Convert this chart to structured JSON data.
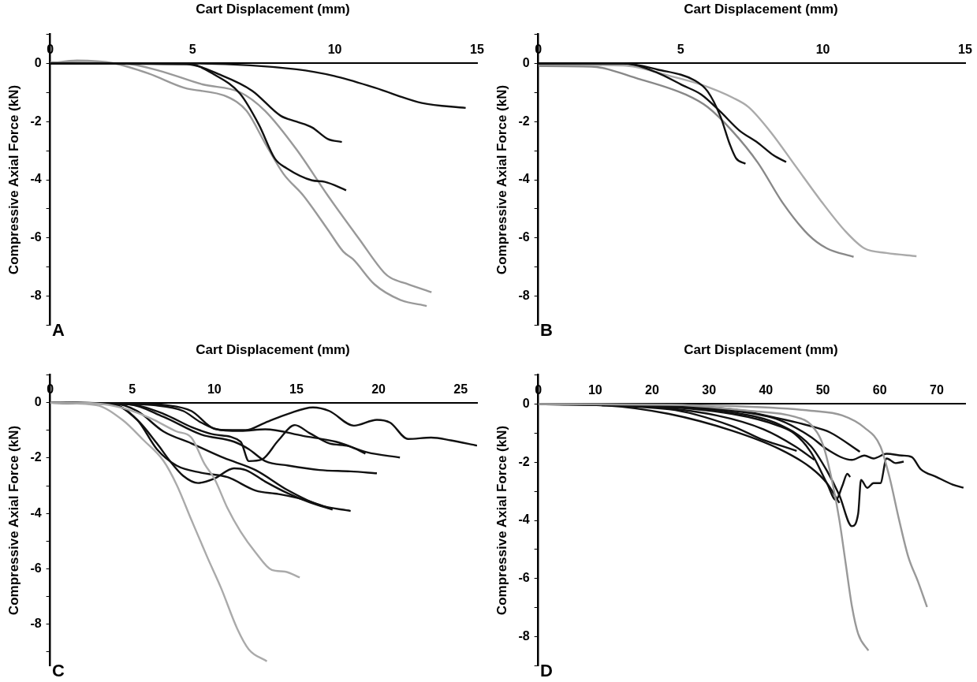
{
  "chart_data": [
    {
      "type": "line",
      "xlabel": "Cart Displacement (mm)",
      "ylabel": "Compressive Axial Force (kN)",
      "annotations": [
        "A"
      ],
      "marker": "none",
      "line_style": "solid",
      "xlim": [
        0,
        15
      ],
      "xticks": [
        0,
        5,
        10,
        15
      ],
      "ylim": [
        -9,
        1
      ],
      "yticks": [
        {
          "value": 1,
          "label": null
        },
        0,
        {
          "value": -1,
          "label": null
        },
        -2,
        {
          "value": -3,
          "label": null
        },
        -4,
        {
          "value": -5,
          "label": null
        },
        -6,
        {
          "value": -7,
          "label": null
        },
        -8,
        {
          "value": -9,
          "label": null
        }
      ],
      "series": [
        {
          "color": "#111111",
          "x": [
            0,
            4.8,
            8.65,
            9.98,
            11.4,
            13.06,
            14.6
          ],
          "values": [
            0,
            0,
            -0.2,
            -0.43,
            -0.83,
            -1.36,
            -1.53
          ]
        },
        {
          "color": "#111111",
          "x": [
            0,
            4.8,
            6.0,
            7.1,
            8.1,
            8.65,
            9.2,
            9.76,
            10.25
          ],
          "values": [
            0,
            -0.03,
            -0.4,
            -0.94,
            -1.8,
            -2.0,
            -2.2,
            -2.6,
            -2.7
          ]
        },
        {
          "color": "#111111",
          "x": [
            0,
            4.8,
            5.8,
            6.67,
            7.33,
            7.9,
            8.3,
            9.2,
            9.65,
            10.4
          ],
          "values": [
            0,
            0,
            -0.4,
            -1.04,
            -2.1,
            -3.28,
            -3.6,
            -4.02,
            -4.07,
            -4.36
          ]
        },
        {
          "color": "#999999",
          "x": [
            0,
            2.6,
            3.8,
            5.35,
            6.67,
            7.55,
            8.65,
            9.76,
            10.86,
            11.74,
            11.96,
            12.6,
            13.4
          ],
          "values": [
            0.04,
            0,
            -0.24,
            -0.72,
            -0.99,
            -1.63,
            -2.95,
            -4.55,
            -6.04,
            -7.2,
            -7.37,
            -7.6,
            -7.87
          ]
        },
        {
          "color": "#999999",
          "x": [
            0,
            0.94,
            2.26,
            3.47,
            4.69,
            6.23,
            6.9,
            7.55,
            8.2,
            8.9,
            9.76,
            10.3,
            10.64,
            11.4,
            12.3,
            13.23
          ],
          "values": [
            0,
            0.1,
            0,
            -0.35,
            -0.83,
            -1.15,
            -1.63,
            -2.74,
            -3.8,
            -4.55,
            -5.72,
            -6.47,
            -6.73,
            -7.6,
            -8.13,
            -8.34
          ]
        }
      ]
    },
    {
      "type": "line",
      "xlabel": "Cart Displacement (mm)",
      "ylabel": "Compressive Axial Force (kN)",
      "annotations": [
        "B"
      ],
      "marker": "none",
      "line_style": "solid",
      "xlim": [
        0,
        15
      ],
      "xticks": [
        0,
        5,
        10,
        15
      ],
      "ylim": [
        -9,
        1
      ],
      "yticks": [
        {
          "value": 1,
          "label": null
        },
        0,
        {
          "value": -1,
          "label": null
        },
        -2,
        {
          "value": -3,
          "label": null
        },
        -4,
        {
          "value": -5,
          "label": null
        },
        -6,
        {
          "value": -7,
          "label": null
        },
        -8,
        {
          "value": -9,
          "label": null
        }
      ],
      "series": [
        {
          "color": "#111111",
          "x": [
            0,
            2.98,
            4.19,
            5.51,
            5.95,
            6.4,
            6.73,
            6.95,
            7.28
          ],
          "values": [
            0,
            0,
            -0.21,
            -0.59,
            -0.96,
            -1.82,
            -2.78,
            -3.26,
            -3.45
          ]
        },
        {
          "color": "#111111",
          "x": [
            0,
            2.98,
            4.19,
            5.07,
            5.73,
            6.4,
            7.06,
            7.72,
            8.27,
            8.71
          ],
          "values": [
            0,
            0,
            -0.32,
            -0.75,
            -1.07,
            -1.66,
            -2.3,
            -2.73,
            -3.16,
            -3.39
          ]
        },
        {
          "color": "#888888",
          "x": [
            0,
            1.87,
            3.53,
            5.18,
            5.95,
            6.84,
            7.72,
            8.6,
            9.48,
            10.14,
            11.08
          ],
          "values": [
            -0.09,
            -0.11,
            -0.53,
            -1.07,
            -1.5,
            -2.35,
            -3.42,
            -4.81,
            -5.88,
            -6.36,
            -6.65
          ]
        },
        {
          "color": "#aaaaaa",
          "x": [
            0,
            2.98,
            4.63,
            5.73,
            6.84,
            7.39,
            8.16,
            9.04,
            9.92,
            10.8,
            11.46,
            12.24,
            13.29
          ],
          "values": [
            -0.05,
            -0.07,
            -0.43,
            -0.73,
            -1.18,
            -1.5,
            -2.35,
            -3.53,
            -4.71,
            -5.78,
            -6.36,
            -6.52,
            -6.63
          ]
        }
      ]
    },
    {
      "type": "line",
      "xlabel": "Cart Displacement (mm)",
      "ylabel": "Compressive Axial Force (kN)",
      "annotations": [
        "C"
      ],
      "marker": "none",
      "line_style": "solid",
      "xlim": [
        0,
        26
      ],
      "xticks": [
        0,
        5,
        10,
        15,
        20,
        25
      ],
      "ylim": [
        -9.5,
        1
      ],
      "yticks": [
        {
          "value": 1,
          "label": null
        },
        0,
        {
          "value": -1,
          "label": null
        },
        -2,
        {
          "value": -3,
          "label": null
        },
        -4,
        {
          "value": -5,
          "label": null
        },
        -6,
        {
          "value": -7,
          "label": null
        },
        -8,
        {
          "value": -9,
          "label": null
        }
      ],
      "series": [
        {
          "color": "#aaaaaa",
          "x": [
            0,
            2.8,
            4.4,
            6.1,
            7.7,
            8.6,
            9.4,
            10.0,
            10.8,
            11.6,
            12.5,
            13.5,
            14.3,
            15.2
          ],
          "values": [
            0,
            -0.03,
            -0.19,
            -0.56,
            -1.04,
            -1.26,
            -2.21,
            -2.74,
            -3.81,
            -4.66,
            -5.4,
            -6.04,
            -6.1,
            -6.31
          ]
        },
        {
          "color": "#aaaaaa",
          "x": [
            0,
            2.8,
            4.4,
            5.7,
            6.9,
            7.7,
            8.6,
            9.6,
            10.4,
            11.4,
            12.1,
            13.2
          ],
          "values": [
            0,
            -0.09,
            -0.62,
            -1.36,
            -2.1,
            -2.96,
            -4.23,
            -5.62,
            -6.68,
            -8.17,
            -8.91,
            -9.34
          ]
        },
        {
          "color": "#111111",
          "x": [
            0,
            3.8,
            6.3,
            8.1,
            9.2,
            10.4,
            11.9,
            13.1,
            14.5,
            16.0,
            17.0,
            18.5,
            19.9,
            20.7,
            21.8,
            23.2,
            24.4,
            26.0
          ],
          "values": [
            0,
            -0.03,
            -0.09,
            -0.3,
            -0.72,
            -0.99,
            -0.99,
            -0.72,
            -0.4,
            -0.17,
            -0.3,
            -0.83,
            -0.62,
            -0.72,
            -1.31,
            -1.26,
            -1.36,
            -1.55
          ]
        },
        {
          "color": "#111111",
          "x": [
            0,
            4.8,
            7.1,
            8.6,
            10.0,
            11.6,
            13.1,
            15.4,
            17.4,
            19.3,
            21.3
          ],
          "values": [
            0,
            -0.03,
            -0.09,
            -0.3,
            -0.94,
            -1.02,
            -0.96,
            -1.2,
            -1.41,
            -1.79,
            -1.98
          ]
        },
        {
          "color": "#111111",
          "x": [
            0,
            4.8,
            6.9,
            8.6,
            10.0,
            11.6,
            12.1,
            12.9,
            13.9,
            14.9,
            15.8,
            17.0,
            18.2,
            19.2
          ],
          "values": [
            0,
            -0.06,
            -0.4,
            -0.88,
            -1.15,
            -1.41,
            -2.11,
            -2.05,
            -1.36,
            -0.81,
            -1.1,
            -1.47,
            -1.57,
            -1.84
          ]
        },
        {
          "color": "#111111",
          "x": [
            0,
            4.8,
            6.9,
            9.2,
            11.2,
            12.1,
            13.1,
            14.5,
            16.4,
            18.3,
            19.9
          ],
          "values": [
            0,
            -0.06,
            -0.51,
            -1.15,
            -1.41,
            -1.68,
            -2.11,
            -2.27,
            -2.43,
            -2.48,
            -2.55
          ]
        },
        {
          "color": "#111111",
          "x": [
            0,
            3.8,
            5.3,
            6.9,
            8.6,
            10.6,
            12.5,
            14.5,
            16.4,
            18.3
          ],
          "values": [
            0,
            -0.03,
            -0.3,
            -1.04,
            -1.47,
            -2.0,
            -2.43,
            -3.17,
            -3.7,
            -3.91
          ]
        },
        {
          "color": "#111111",
          "x": [
            0,
            3.8,
            5.3,
            6.5,
            7.3,
            8.1,
            9.0,
            10.0,
            11.2,
            11.9,
            13.1,
            14.5,
            15.8,
            17.2
          ],
          "values": [
            0,
            -0.06,
            -0.62,
            -1.47,
            -2.11,
            -2.64,
            -2.9,
            -2.74,
            -2.37,
            -2.43,
            -2.85,
            -3.28,
            -3.6,
            -3.86
          ]
        },
        {
          "color": "#111111",
          "x": [
            0,
            3.8,
            5.3,
            6.5,
            7.7,
            9.2,
            10.8,
            12.5,
            13.9,
            15.4,
            17.0
          ],
          "values": [
            0,
            -0.06,
            -0.62,
            -1.68,
            -2.27,
            -2.53,
            -2.69,
            -3.17,
            -3.3,
            -3.49,
            -3.81
          ]
        }
      ]
    },
    {
      "type": "line",
      "xlabel": "Cart Displacement (mm)",
      "ylabel": "Compressive Axial Force (kN)",
      "annotations": [
        "D"
      ],
      "marker": "none",
      "line_style": "solid",
      "xlim": [
        0,
        75
      ],
      "xticks": [
        0,
        10,
        20,
        30,
        40,
        50,
        60,
        70
      ],
      "ylim": [
        -9,
        1
      ],
      "yticks": [
        {
          "value": 1,
          "label": null
        },
        0,
        {
          "value": -1,
          "label": null
        },
        -2,
        {
          "value": -3,
          "label": null
        },
        -4,
        {
          "value": -5,
          "label": null
        },
        -6,
        {
          "value": -7,
          "label": null
        },
        -8,
        {
          "value": -9,
          "label": null
        }
      ],
      "series": [
        {
          "color": "#999999",
          "x": [
            0,
            23,
            36.9,
            45.1,
            47.9,
            50.1,
            51.8,
            52.9,
            54.0,
            55.1,
            56.2,
            58.0
          ],
          "values": [
            0,
            -0.02,
            -0.23,
            -0.44,
            -0.71,
            -1.45,
            -2.82,
            -3.99,
            -5.47,
            -6.95,
            -7.9,
            -8.48
          ]
        },
        {
          "color": "#999999",
          "x": [
            0,
            34.1,
            47.9,
            53.4,
            57.3,
            60.1,
            61.7,
            63.4,
            65.0,
            66.7,
            68.3
          ],
          "values": [
            0,
            -0.07,
            -0.23,
            -0.39,
            -0.81,
            -1.45,
            -2.51,
            -3.99,
            -5.25,
            -6.1,
            -6.98
          ]
        },
        {
          "color": "#111111",
          "x": [
            0,
            17.5,
            34.1,
            42.4,
            47.9,
            51.2,
            56.5
          ],
          "values": [
            0,
            -0.02,
            -0.18,
            -0.5,
            -0.76,
            -0.97,
            -1.64
          ]
        },
        {
          "color": "#111111",
          "x": [
            0,
            17.5,
            34.1,
            42.4,
            47.9,
            50.7,
            55.1,
            57.3,
            58.9,
            61.2,
            63.9,
            65.6,
            67.2,
            70.0,
            72.8,
            74.7
          ],
          "values": [
            0,
            -0.02,
            -0.23,
            -0.55,
            -1.13,
            -1.55,
            -1.92,
            -1.77,
            -1.87,
            -1.71,
            -1.77,
            -1.82,
            -2.24,
            -2.51,
            -2.77,
            -2.88
          ]
        },
        {
          "color": "#111111",
          "x": [
            0,
            17.5,
            34.1,
            42.4,
            47.9,
            50.7,
            52.9,
            55.1,
            56.2,
            56.7,
            57.8,
            58.9,
            60.1,
            61.2,
            62.8,
            64.2
          ],
          "values": [
            0,
            -0.04,
            -0.29,
            -0.71,
            -1.45,
            -2.29,
            -3.14,
            -4.2,
            -3.77,
            -2.61,
            -2.88,
            -2.72,
            -2.72,
            -1.87,
            -2.03,
            -1.98
          ]
        },
        {
          "color": "#111111",
          "x": [
            0,
            17.5,
            34.1,
            42.4,
            45.1,
            47.9,
            50.7,
            52.3,
            53.4,
            54.3,
            54.8
          ],
          "values": [
            0,
            -0.05,
            -0.34,
            -0.76,
            -1.03,
            -1.66,
            -2.72,
            -3.3,
            -2.82,
            -2.4,
            -2.51
          ]
        },
        {
          "color": "#111111",
          "x": [
            0,
            17.5,
            31.3,
            39.6,
            45.1,
            48.5
          ],
          "values": [
            0,
            -0.07,
            -0.39,
            -0.87,
            -1.45,
            -1.92
          ]
        },
        {
          "color": "#111111",
          "x": [
            0,
            12.0,
            23.0,
            34.1,
            42.4,
            47.9,
            50.7,
            52.9
          ],
          "values": [
            0,
            -0.05,
            -0.34,
            -0.92,
            -1.55,
            -2.19,
            -2.72,
            -3.4
          ]
        },
        {
          "color": "#111111",
          "x": [
            0,
            23.0,
            34.1,
            39.6,
            42.9,
            45.4
          ],
          "values": [
            0,
            -0.18,
            -0.76,
            -1.24,
            -1.45,
            -1.61
          ]
        }
      ]
    }
  ]
}
